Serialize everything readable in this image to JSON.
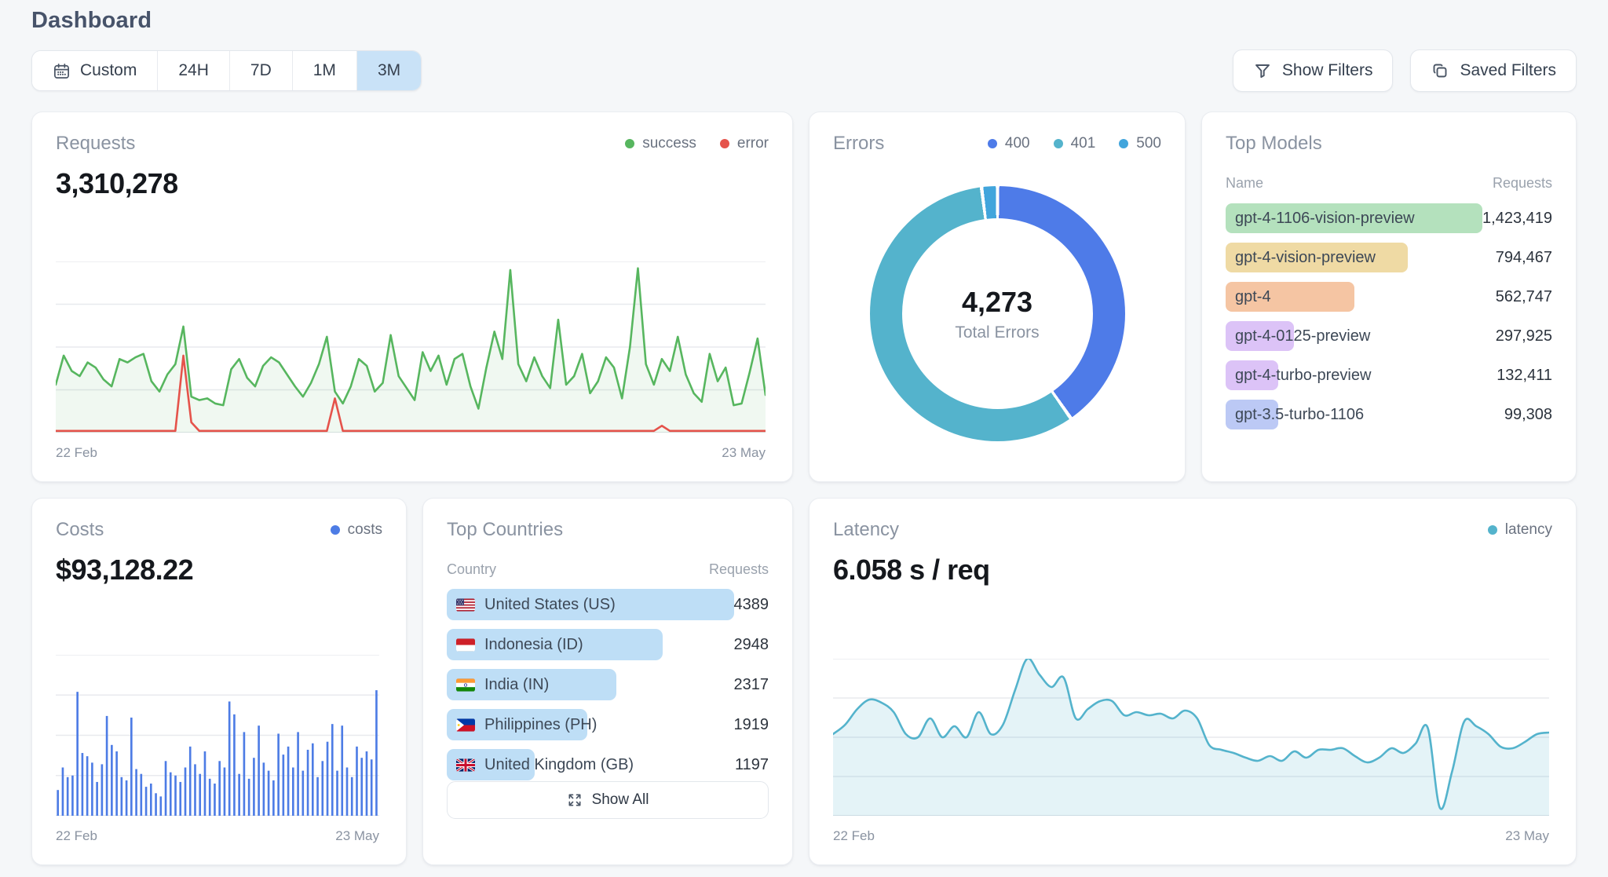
{
  "page": {
    "title": "Dashboard"
  },
  "toolbar": {
    "time_filters": [
      {
        "label": "Custom",
        "icon": "calendar-icon",
        "selected": false
      },
      {
        "label": "24H",
        "selected": false
      },
      {
        "label": "7D",
        "selected": false
      },
      {
        "label": "1M",
        "selected": false
      },
      {
        "label": "3M",
        "selected": true
      }
    ],
    "show_filters_label": "Show Filters",
    "saved_filters_label": "Saved Filters",
    "selected_bg": "#c9e2f7"
  },
  "cards": {
    "requests": {
      "title": "Requests",
      "total": "3,310,278",
      "legend": [
        {
          "label": "success",
          "color": "#57b65f"
        },
        {
          "label": "error",
          "color": "#e5534b"
        }
      ],
      "x_start": "22 Feb",
      "x_end": "23 May"
    },
    "errors": {
      "title": "Errors",
      "center_value": "4,273",
      "center_label": "Total Errors",
      "legend": [
        {
          "label": "400",
          "color": "#4e7be8"
        },
        {
          "label": "401",
          "color": "#54b3cc"
        },
        {
          "label": "500",
          "color": "#41a5dc"
        }
      ]
    },
    "top_models": {
      "title": "Top Models",
      "col_name": "Name",
      "col_requests": "Requests",
      "rows": [
        {
          "name": "gpt-4-1106-vision-preview",
          "requests": "1,423,419",
          "value": 1423419,
          "color": "#b4e1bd"
        },
        {
          "name": "gpt-4-vision-preview",
          "requests": "794,467",
          "value": 794467,
          "color": "#efdaa4"
        },
        {
          "name": "gpt-4",
          "requests": "562,747",
          "value": 562747,
          "color": "#f5c5a3"
        },
        {
          "name": "gpt-4-0125-preview",
          "requests": "297,925",
          "value": 297925,
          "color": "#dcc3f7"
        },
        {
          "name": "gpt-4-turbo-preview",
          "requests": "132,411",
          "value": 132411,
          "color": "#dcc3f7"
        },
        {
          "name": "gpt-3.5-turbo-1106",
          "requests": "99,308",
          "value": 99308,
          "color": "#bcc9f5"
        }
      ]
    },
    "costs": {
      "title": "Costs",
      "total": "$93,128.22",
      "legend": [
        {
          "label": "costs",
          "color": "#4d7ce5"
        }
      ],
      "x_start": "22 Feb",
      "x_end": "23 May"
    },
    "top_countries": {
      "title": "Top Countries",
      "col_country": "Country",
      "col_requests": "Requests",
      "rows": [
        {
          "name": "United States (US)",
          "code": "us",
          "requests": 4389
        },
        {
          "name": "Indonesia (ID)",
          "code": "id",
          "requests": 2948
        },
        {
          "name": "India (IN)",
          "code": "in",
          "requests": 2317
        },
        {
          "name": "Philippines (PH)",
          "code": "ph",
          "requests": 1919
        },
        {
          "name": "United Kingdom (GB)",
          "code": "gb",
          "requests": 1197
        }
      ],
      "bar_color": "#bedef6",
      "show_all_label": "Show All"
    },
    "latency": {
      "title": "Latency",
      "total": "6.058 s / req",
      "legend": [
        {
          "label": "latency",
          "color": "#54b3cc"
        }
      ],
      "x_start": "22 Feb",
      "x_end": "23 May"
    }
  },
  "chart_data": [
    {
      "id": "requests",
      "type": "line",
      "title": "Requests",
      "total_requests": 3310278,
      "x_range": [
        "22 Feb",
        "23 May"
      ],
      "grid": true,
      "legend_position": "top-right",
      "y_axis": "unlabeled — values are relative heights 0-100",
      "series": [
        {
          "name": "success",
          "color": "#57b65f",
          "fill": true,
          "values": [
            28,
            45,
            36,
            33,
            41,
            38,
            31,
            27,
            43,
            41,
            44,
            46,
            30,
            24,
            34,
            40,
            62,
            21,
            19,
            20,
            17,
            16,
            37,
            43,
            32,
            27,
            39,
            44,
            41,
            34,
            27,
            21,
            29,
            40,
            56,
            24,
            17,
            27,
            43,
            39,
            24,
            29,
            57,
            33,
            26,
            19,
            47,
            36,
            45,
            28,
            43,
            46,
            27,
            14,
            38,
            59,
            43,
            95,
            40,
            30,
            44,
            33,
            26,
            66,
            28,
            33,
            46,
            23,
            30,
            44,
            38,
            20,
            50,
            96,
            40,
            28,
            43,
            36,
            56,
            34,
            23,
            18,
            46,
            30,
            38,
            16,
            17,
            35,
            55,
            22
          ]
        },
        {
          "name": "error",
          "color": "#e5534b",
          "fill": false,
          "values": [
            1,
            1,
            1,
            1,
            1,
            1,
            1,
            1,
            1,
            1,
            1,
            1,
            1,
            1,
            1,
            1,
            45,
            6,
            1,
            1,
            1,
            1,
            1,
            1,
            1,
            1,
            1,
            1,
            1,
            1,
            1,
            1,
            1,
            1,
            1,
            20,
            1,
            1,
            1,
            1,
            1,
            1,
            1,
            1,
            1,
            1,
            1,
            1,
            1,
            1,
            1,
            1,
            1,
            1,
            1,
            1,
            1,
            1,
            1,
            1,
            1,
            1,
            1,
            1,
            1,
            1,
            1,
            1,
            1,
            1,
            1,
            1,
            1,
            1,
            1,
            1,
            4,
            1,
            1,
            1,
            1,
            1,
            1,
            1,
            1,
            1,
            1,
            1,
            1,
            1
          ]
        }
      ]
    },
    {
      "id": "errors",
      "type": "pie",
      "donut": true,
      "title": "Errors",
      "total": 4273,
      "total_label": "Total Errors",
      "segments": [
        {
          "label": "400",
          "value": 1721,
          "color": "#4e7be8"
        },
        {
          "label": "401",
          "value": 2466,
          "color": "#54b3cc"
        },
        {
          "label": "500",
          "value": 86,
          "color": "#41a5dc"
        }
      ]
    },
    {
      "id": "costs",
      "type": "bar",
      "title": "Costs",
      "total_cost": "$93,128.22",
      "x_range": [
        "22 Feb",
        "23 May"
      ],
      "grid": true,
      "y_axis": "unlabeled — values are relative heights 0-100",
      "series": [
        {
          "name": "costs",
          "color": "#4d7ce5",
          "values": [
            16,
            30,
            24,
            25,
            77,
            39,
            37,
            33,
            21,
            32,
            62,
            44,
            40,
            24,
            22,
            61,
            29,
            26,
            18,
            20,
            14,
            12,
            34,
            27,
            25,
            21,
            30,
            43,
            32,
            26,
            40,
            23,
            20,
            34,
            30,
            71,
            63,
            26,
            52,
            23,
            36,
            56,
            33,
            28,
            22,
            51,
            38,
            43,
            30,
            52,
            28,
            41,
            45,
            24,
            34,
            46,
            57,
            28,
            56,
            30,
            24,
            43,
            36,
            40,
            35,
            78
          ]
        }
      ]
    },
    {
      "id": "latency",
      "type": "area",
      "smooth": true,
      "title": "Latency",
      "avg_latency": "6.058 s / req",
      "x_range": [
        "22 Feb",
        "23 May"
      ],
      "grid": true,
      "y_axis": "unlabeled — values are relative heights 0-100",
      "series": [
        {
          "name": "latency",
          "color": "#54b3cc",
          "fill": true,
          "values": [
            52,
            58,
            68,
            74,
            72,
            66,
            52,
            50,
            62,
            50,
            57,
            50,
            66,
            52,
            58,
            80,
            100,
            90,
            82,
            88,
            62,
            68,
            73,
            73,
            64,
            66,
            64,
            65,
            62,
            67,
            62,
            45,
            42,
            40,
            37,
            35,
            38,
            35,
            41,
            37,
            42,
            42,
            43,
            38,
            34,
            37,
            43,
            40,
            46,
            56,
            5,
            28,
            60,
            57,
            52,
            44,
            43,
            47,
            52,
            53
          ]
        }
      ]
    },
    {
      "id": "top_models",
      "type": "table",
      "columns": [
        "Name",
        "Requests"
      ],
      "rows": [
        [
          "gpt-4-1106-vision-preview",
          1423419
        ],
        [
          "gpt-4-vision-preview",
          794467
        ],
        [
          "gpt-4",
          562747
        ],
        [
          "gpt-4-0125-preview",
          297925
        ],
        [
          "gpt-4-turbo-preview",
          132411
        ],
        [
          "gpt-3.5-turbo-1106",
          99308
        ]
      ]
    },
    {
      "id": "top_countries",
      "type": "table",
      "columns": [
        "Country",
        "Requests"
      ],
      "rows": [
        [
          "United States (US)",
          4389
        ],
        [
          "Indonesia (ID)",
          2948
        ],
        [
          "India (IN)",
          2317
        ],
        [
          "Philippines (PH)",
          1919
        ],
        [
          "United Kingdom (GB)",
          1197
        ]
      ]
    }
  ]
}
